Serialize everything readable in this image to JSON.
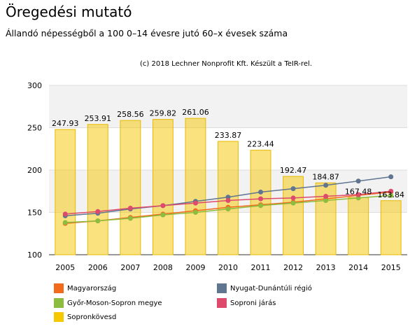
{
  "title": "Öregedési mutató",
  "subtitle": "Állandó népességből a 100 0–14 évesre jutó 60–x évesek száma",
  "credit": "(c) 2018 Lechner Nonprofit Kft. Készült a TeIR-rel.",
  "chart_data": {
    "type": "bar",
    "title": "Öregedési mutató",
    "subtitle": "Állandó népességből a 100 0–14 évesre jutó 60–x évesek száma",
    "categories": [
      "2005",
      "2006",
      "2007",
      "2008",
      "2009",
      "2010",
      "2011",
      "2012",
      "2013",
      "2014",
      "2015"
    ],
    "ylim": [
      100,
      300
    ],
    "yticks": [
      100,
      150,
      200,
      250,
      300
    ],
    "grid": true,
    "legend_position": "bottom",
    "bar_series": {
      "name": "Sopronkövesd",
      "color": "#f5c800",
      "values": [
        247.93,
        253.91,
        258.56,
        259.82,
        261.06,
        233.87,
        223.44,
        192.47,
        184.87,
        167.48,
        163.84
      ],
      "labels": [
        "247.93",
        "253.91",
        "258.56",
        "259.82",
        "261.06",
        "233.87",
        "223.44",
        "192.47",
        "184.87",
        "167.48",
        "163.84"
      ]
    },
    "line_series": [
      {
        "name": "Magyarország",
        "color": "#f26b1d",
        "values": [
          137,
          140,
          144,
          148,
          152,
          156,
          159,
          162,
          166,
          170,
          174
        ]
      },
      {
        "name": "Győr-Moson-Sopron megye",
        "color": "#8cbd3f",
        "values": [
          138,
          140,
          143,
          147,
          150,
          154,
          158,
          161,
          164,
          167,
          170
        ]
      },
      {
        "name": "Nyugat-Dunántúli régió",
        "color": "#5f7590",
        "values": [
          146,
          149,
          154,
          158,
          163,
          168,
          174,
          178,
          182,
          187,
          192
        ]
      },
      {
        "name": "Soproni járás",
        "color": "#dd4a6b",
        "values": [
          148,
          151,
          155,
          158,
          161,
          164,
          166,
          167,
          169,
          171,
          175
        ]
      }
    ]
  },
  "legend": [
    {
      "label": "Magyarország",
      "color": "#f26b1d"
    },
    {
      "label": "Nyugat-Dunántúli régió",
      "color": "#5f7590"
    },
    {
      "label": "Győr-Moson-Sopron megye",
      "color": "#8cbd3f"
    },
    {
      "label": "Soproni járás",
      "color": "#dd4a6b"
    },
    {
      "label": "Sopronkövesd",
      "color": "#f5c800"
    }
  ]
}
